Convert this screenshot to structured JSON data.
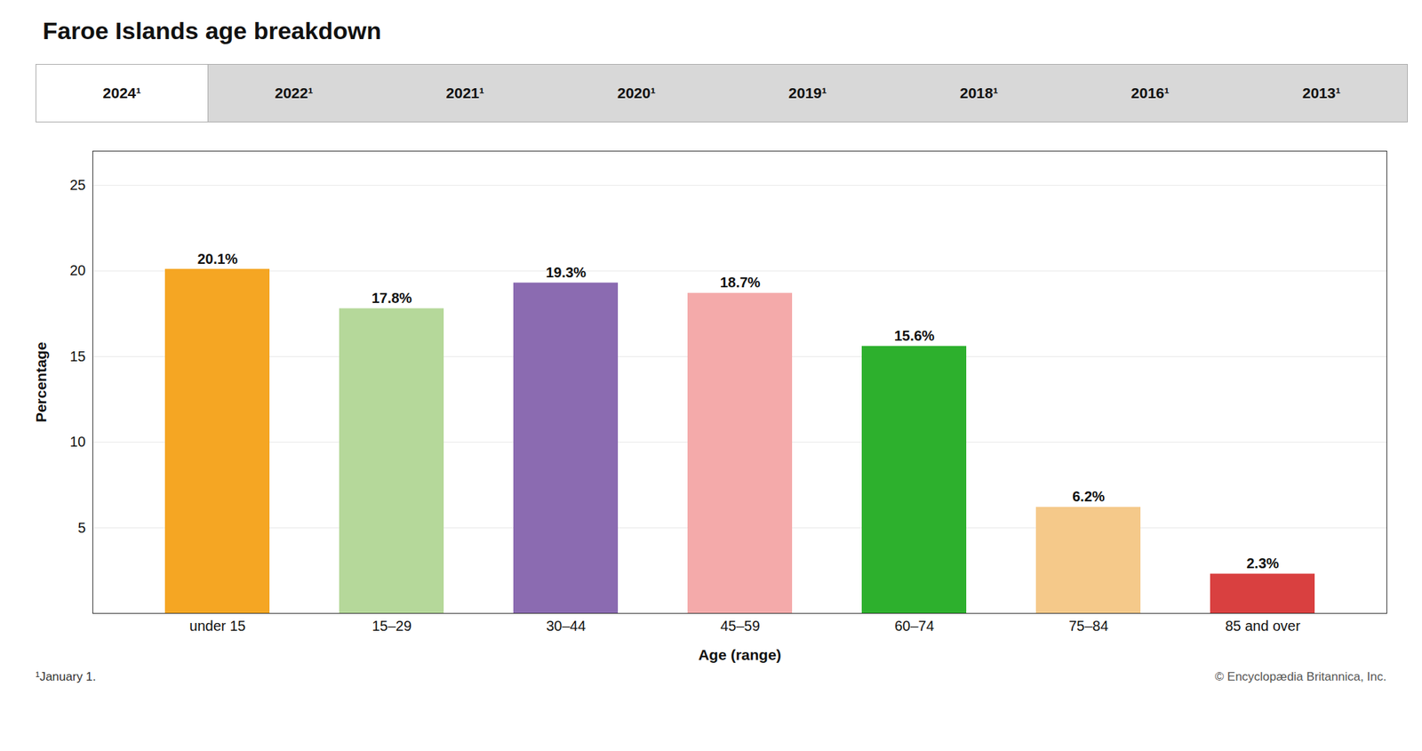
{
  "chart_data": {
    "type": "bar",
    "title": "Faroe Islands age breakdown",
    "categories": [
      "under 15",
      "15–29",
      "30–44",
      "45–59",
      "60–74",
      "75–84",
      "85 and over"
    ],
    "values": [
      20.1,
      17.8,
      19.3,
      18.7,
      15.6,
      6.2,
      2.3
    ],
    "value_labels": [
      "20.1%",
      "17.8%",
      "19.3%",
      "18.7%",
      "15.6%",
      "6.2%",
      "2.3%"
    ],
    "data_labels": true,
    "colors": [
      "#F5A623",
      "#B5D89A",
      "#8B6BB1",
      "#F4AAAA",
      "#2DB02D",
      "#F5C98A",
      "#D94040"
    ],
    "xlabel": "Age (range)",
    "ylabel": "Percentage",
    "ylim": [
      0,
      27
    ],
    "yticks": [
      5,
      10,
      15,
      20,
      25
    ],
    "grid": true,
    "tabs": [
      "2024¹",
      "2022¹",
      "2021¹",
      "2020¹",
      "2019¹",
      "2018¹",
      "2016¹",
      "2013¹"
    ],
    "footnote": "¹January 1.",
    "copyright": "© Encyclopædia Britannica, Inc."
  }
}
